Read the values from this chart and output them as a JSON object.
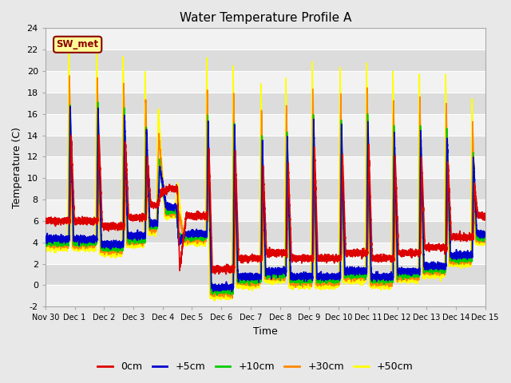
{
  "title": "Water Temperature Profile A",
  "xlabel": "Time",
  "ylabel": "Temperature (C)",
  "ylim": [
    -2,
    24
  ],
  "yticks": [
    -2,
    0,
    2,
    4,
    6,
    8,
    10,
    12,
    14,
    16,
    18,
    20,
    22,
    24
  ],
  "bg_color": "#e8e8e8",
  "band_light": "#f2f2f2",
  "band_dark": "#dcdcdc",
  "lines": [
    {
      "label": "0cm",
      "color": "#dd0000",
      "lw": 1.2
    },
    {
      "label": "+5cm",
      "color": "#0000cc",
      "lw": 1.2
    },
    {
      "label": "+10cm",
      "color": "#00cc00",
      "lw": 1.2
    },
    {
      "label": "+30cm",
      "color": "#ff8800",
      "lw": 1.2
    },
    {
      "label": "+50cm",
      "color": "#ffff00",
      "lw": 1.2
    }
  ],
  "x_tick_labels": [
    "Nov 30",
    "Dec 1",
    "Dec 2",
    "Dec 3",
    "Dec 4",
    "Dec 5",
    "Dec 6",
    "Dec 7",
    "Dec 8",
    "Dec 9",
    "Dec 10",
    "Dec 11",
    "Dec 12",
    "Dec 13",
    "Dec 14",
    "Dec 15"
  ],
  "sw_met_label": "SW_met",
  "sw_met_facecolor": "#ffff99",
  "sw_met_edgecolor": "#8b0000",
  "sw_met_textcolor": "#8b0000",
  "peak_times": [
    0.8,
    1.75,
    2.65,
    3.4,
    3.85,
    4.5,
    5.5,
    6.4,
    7.35,
    8.2,
    9.1,
    10.05,
    10.95,
    11.85,
    12.75,
    13.65,
    14.55
  ],
  "peak_heights_y50": [
    22,
    22,
    21.5,
    20,
    16.5,
    9.5,
    21,
    20.5,
    19,
    19.5,
    21,
    20.5,
    21,
    20,
    20,
    19.5,
    17.5
  ],
  "min_heights_y50": [
    3.5,
    3,
    3.8,
    5,
    6.5,
    4,
    -1,
    0,
    0.5,
    0,
    0,
    0.5,
    0,
    0.5,
    1,
    2,
    4
  ],
  "peak_widths": [
    0.15,
    0.15,
    0.15,
    0.15,
    0.3,
    0.3,
    0.15,
    0.15,
    0.15,
    0.15,
    0.15,
    0.15,
    0.15,
    0.15,
    0.15,
    0.15,
    0.15
  ]
}
